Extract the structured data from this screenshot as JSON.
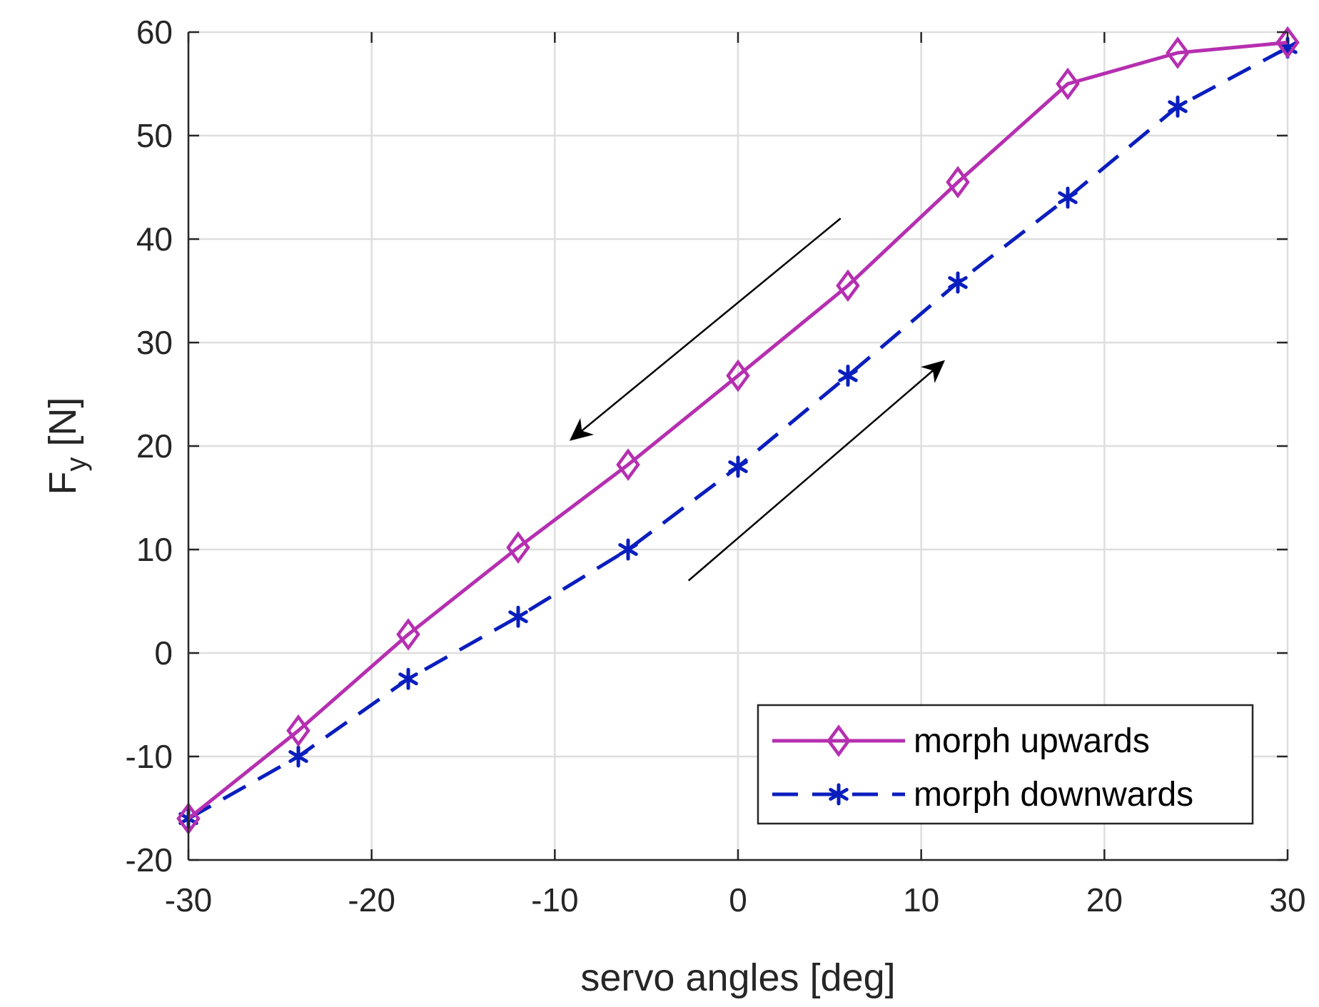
{
  "chart_data": {
    "type": "line",
    "title": "",
    "xlabel": "servo angles [deg]",
    "ylabel": {
      "main": "F",
      "subscript": "y",
      "unit": " [N]"
    },
    "xlim": [
      -30,
      30
    ],
    "ylim": [
      -20,
      60
    ],
    "xticks": [
      -30,
      -20,
      -10,
      0,
      10,
      20,
      30
    ],
    "yticks": [
      -20,
      -10,
      0,
      10,
      20,
      30,
      40,
      50,
      60
    ],
    "xtick_labels": [
      "-30",
      "-20",
      "-10",
      "0",
      "10",
      "20",
      "30"
    ],
    "ytick_labels": [
      "-20",
      "-10",
      "0",
      "10",
      "20",
      "30",
      "40",
      "50",
      "60"
    ],
    "grid": true,
    "legend_position": "bottom-right",
    "x": [
      -30,
      -24,
      -18,
      -12,
      -6,
      0,
      6,
      12,
      18,
      24,
      30
    ],
    "series": [
      {
        "name": "morph upwards",
        "color": "#b52fb0",
        "line_style": "solid",
        "marker": "diamond",
        "values": [
          -16.0,
          -7.5,
          1.8,
          10.2,
          18.2,
          26.8,
          35.5,
          45.5,
          55.0,
          58.0,
          59.0
        ]
      },
      {
        "name": "morph downwards",
        "color": "#0a1ebe",
        "line_style": "dashed",
        "marker": "asterisk",
        "values": [
          -16.0,
          -10.0,
          -2.5,
          3.5,
          10.0,
          18.0,
          26.8,
          35.8,
          44.0,
          52.8,
          58.5
        ]
      }
    ],
    "annotations": [
      {
        "type": "arrow",
        "from": [
          5.6,
          42.0
        ],
        "to": [
          -9.2,
          20.5
        ]
      },
      {
        "type": "arrow",
        "from": [
          -2.7,
          7.0
        ],
        "to": [
          11.3,
          28.3
        ]
      }
    ]
  }
}
